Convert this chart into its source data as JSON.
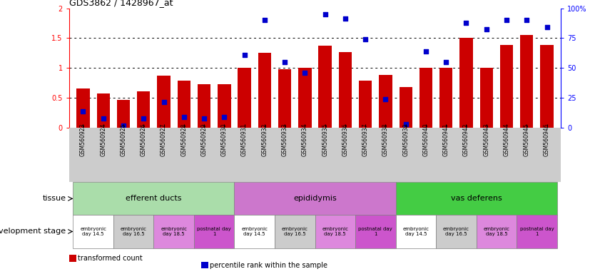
{
  "title": "GDS3862 / 1428967_at",
  "samples": [
    "GSM560923",
    "GSM560924",
    "GSM560925",
    "GSM560926",
    "GSM560927",
    "GSM560928",
    "GSM560929",
    "GSM560930",
    "GSM560931",
    "GSM560932",
    "GSM560933",
    "GSM560934",
    "GSM560935",
    "GSM560936",
    "GSM560937",
    "GSM560938",
    "GSM560939",
    "GSM560940",
    "GSM560941",
    "GSM560942",
    "GSM560943",
    "GSM560944",
    "GSM560945",
    "GSM560946"
  ],
  "red_bars": [
    0.65,
    0.57,
    0.46,
    0.61,
    0.87,
    0.78,
    0.72,
    0.72,
    1.0,
    1.25,
    0.98,
    1.0,
    1.37,
    1.26,
    0.78,
    0.88,
    0.68,
    1.0,
    1.0,
    1.5,
    1.0,
    1.38,
    1.55,
    1.38
  ],
  "blue_dots": [
    0.27,
    0.15,
    0.03,
    0.15,
    0.42,
    0.18,
    0.15,
    0.18,
    1.22,
    1.8,
    1.1,
    0.92,
    1.9,
    1.83,
    1.48,
    0.47,
    0.05,
    1.28,
    1.1,
    1.75,
    1.65,
    1.8,
    1.8,
    1.68
  ],
  "bar_color": "#cc0000",
  "dot_color": "#0000cc",
  "bar_width": 0.65,
  "ylim_left": [
    0,
    2
  ],
  "yticks_left": [
    0,
    0.5,
    1.0,
    1.5,
    2.0
  ],
  "ytick_left_labels": [
    "0",
    "0.5",
    "1",
    "1.5",
    "2"
  ],
  "yticks_right_vals": [
    0,
    25,
    50,
    75,
    100
  ],
  "yticks_right_labels": [
    "0",
    "25",
    "50",
    "75",
    "100%"
  ],
  "dotted_lines": [
    0.5,
    1.0,
    1.5
  ],
  "tissue_groups": [
    {
      "label": "efferent ducts",
      "start": 0,
      "end": 8,
      "color": "#aaddaa"
    },
    {
      "label": "epididymis",
      "start": 8,
      "end": 16,
      "color": "#cc77cc"
    },
    {
      "label": "vas deferens",
      "start": 16,
      "end": 24,
      "color": "#44cc44"
    }
  ],
  "dev_colors": {
    "embryonic\nday 14.5": "#ffffff",
    "embryonic\nday 16.5": "#cccccc",
    "embryonic\nday 18.5": "#dd88dd",
    "postnatal day\n1": "#cc55cc"
  },
  "dev_groups": [
    {
      "label": "embryonic\nday 14.5",
      "start": 0,
      "end": 2
    },
    {
      "label": "embryonic\nday 16.5",
      "start": 2,
      "end": 4
    },
    {
      "label": "embryonic\nday 18.5",
      "start": 4,
      "end": 6
    },
    {
      "label": "postnatal day\n1",
      "start": 6,
      "end": 8
    },
    {
      "label": "embryonic\nday 14.5",
      "start": 8,
      "end": 10
    },
    {
      "label": "embryonic\nday 16.5",
      "start": 10,
      "end": 12
    },
    {
      "label": "embryonic\nday 18.5",
      "start": 12,
      "end": 14
    },
    {
      "label": "postnatal day\n1",
      "start": 14,
      "end": 16
    },
    {
      "label": "embryonic\nday 14.5",
      "start": 16,
      "end": 18
    },
    {
      "label": "embryonic\nday 16.5",
      "start": 18,
      "end": 20
    },
    {
      "label": "embryonic\nday 18.5",
      "start": 20,
      "end": 22
    },
    {
      "label": "postnatal day\n1",
      "start": 22,
      "end": 24
    }
  ],
  "legend_items": [
    {
      "color": "#cc0000",
      "label": "transformed count"
    },
    {
      "color": "#0000cc",
      "label": "percentile rank within the sample"
    }
  ],
  "tissue_row_label": "tissue",
  "dev_row_label": "development stage",
  "bg_color": "#ffffff",
  "xtick_bg_color": "#cccccc"
}
